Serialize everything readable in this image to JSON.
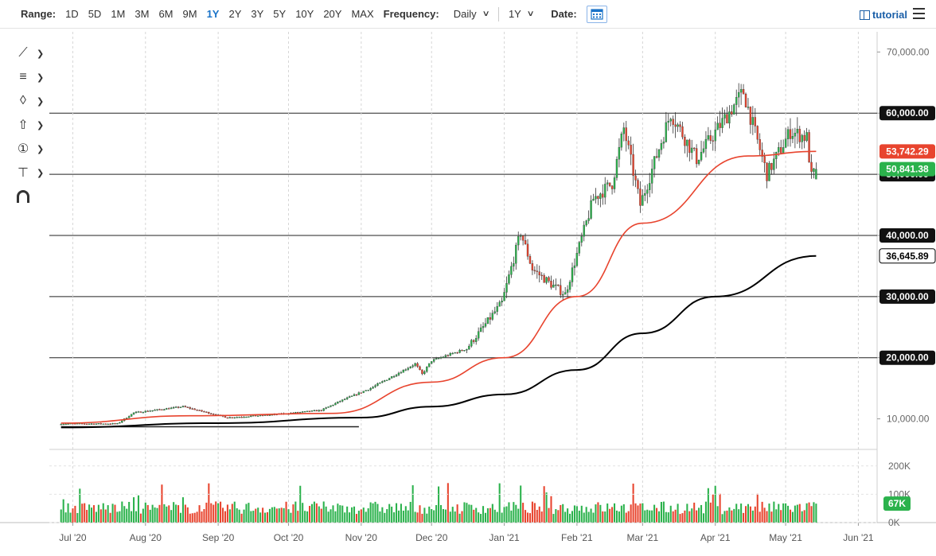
{
  "toolbar": {
    "range_label": "Range:",
    "ranges": [
      "1D",
      "5D",
      "1M",
      "3M",
      "6M",
      "9M",
      "1Y",
      "2Y",
      "3Y",
      "5Y",
      "10Y",
      "20Y",
      "MAX"
    ],
    "active_range": "1Y",
    "frequency_label": "Frequency:",
    "frequency_value": "Daily",
    "period_value": "1Y",
    "date_label": "Date:",
    "tutorial_label": "tutorial"
  },
  "tools": [
    "line-tool-icon",
    "fib-tool-icon",
    "shape-tool-icon",
    "arrow-tool-icon",
    "counter-tool-icon",
    "measure-tool-icon",
    "magnet-icon"
  ],
  "chart_data": {
    "type": "candlestick",
    "subject": "",
    "x_labels": [
      "Jul '20",
      "Aug '20",
      "Sep '20",
      "Oct '20",
      "Nov '20",
      "Dec '20",
      "Jan '21",
      "Feb '21",
      "Mar '21",
      "Apr '21",
      "May '21",
      "Jun '21"
    ],
    "y_ticks": [
      "70,000.00",
      "60,000.00",
      "50,000.00",
      "40,000.00",
      "30,000.00",
      "20,000.00",
      "10,000.00"
    ],
    "ylim": [
      0,
      70000
    ],
    "price_anchors": [
      [
        "2020-06-26",
        9200
      ],
      [
        "2020-07-20",
        9200
      ],
      [
        "2020-07-27",
        11000
      ],
      [
        "2020-08-17",
        12000
      ],
      [
        "2020-09-05",
        10200
      ],
      [
        "2020-09-25",
        10700
      ],
      [
        "2020-10-15",
        11400
      ],
      [
        "2020-10-23",
        12900
      ],
      [
        "2020-11-05",
        15000
      ],
      [
        "2020-11-24",
        19000
      ],
      [
        "2020-11-27",
        17300
      ],
      [
        "2020-12-01",
        19500
      ],
      [
        "2020-12-16",
        21500
      ],
      [
        "2020-12-31",
        29000
      ],
      [
        "2021-01-08",
        40500
      ],
      [
        "2021-01-13",
        34500
      ],
      [
        "2021-01-21",
        32000
      ],
      [
        "2021-01-27",
        30400
      ],
      [
        "2021-02-08",
        46000
      ],
      [
        "2021-02-16",
        48500
      ],
      [
        "2021-02-21",
        57500
      ],
      [
        "2021-02-28",
        45000
      ],
      [
        "2021-03-13",
        60000
      ],
      [
        "2021-03-24",
        52500
      ],
      [
        "2021-04-13",
        63500
      ],
      [
        "2021-04-23",
        50000
      ],
      [
        "2021-05-03",
        57000
      ],
      [
        "2021-05-10",
        56000
      ],
      [
        "2021-05-12",
        49500
      ],
      [
        "2021-05-14",
        50841
      ]
    ],
    "horizontal_levels": [
      60000,
      50000,
      40000,
      30000,
      20000
    ],
    "moving_averages": [
      {
        "name": "",
        "color": "#e8442e",
        "last_value": "53,742.29",
        "points": [
          [
            "2020-06-26",
            9300
          ],
          [
            "2020-08-20",
            10500
          ],
          [
            "2020-10-20",
            10900
          ],
          [
            "2020-12-01",
            16000
          ],
          [
            "2021-01-01",
            20000
          ],
          [
            "2021-02-01",
            30000
          ],
          [
            "2021-03-01",
            42000
          ],
          [
            "2021-04-15",
            53000
          ],
          [
            "2021-05-14",
            53742
          ]
        ]
      },
      {
        "name": "",
        "color": "#000000",
        "last_value": "36,645.89",
        "points": [
          [
            "2020-06-26",
            8600
          ],
          [
            "2020-09-01",
            9300
          ],
          [
            "2020-11-01",
            10200
          ],
          [
            "2020-12-01",
            12000
          ],
          [
            "2021-01-01",
            14000
          ],
          [
            "2021-02-01",
            18000
          ],
          [
            "2021-03-01",
            24000
          ],
          [
            "2021-04-01",
            30000
          ],
          [
            "2021-05-14",
            36646
          ]
        ]
      }
    ],
    "trendline": [
      [
        "2020-06-26",
        8700
      ],
      [
        "2020-10-31",
        8700
      ]
    ],
    "last_price_label": "50,841.38",
    "volume": {
      "y_ticks": [
        "200K",
        "100K",
        "0K"
      ],
      "ylim": [
        0,
        250000
      ],
      "last_label": "67K"
    }
  },
  "colors": {
    "up": "#2bb24c",
    "down": "#e8442e",
    "active_range": "#1a73c8",
    "tutorial": "#1a5fa8"
  }
}
